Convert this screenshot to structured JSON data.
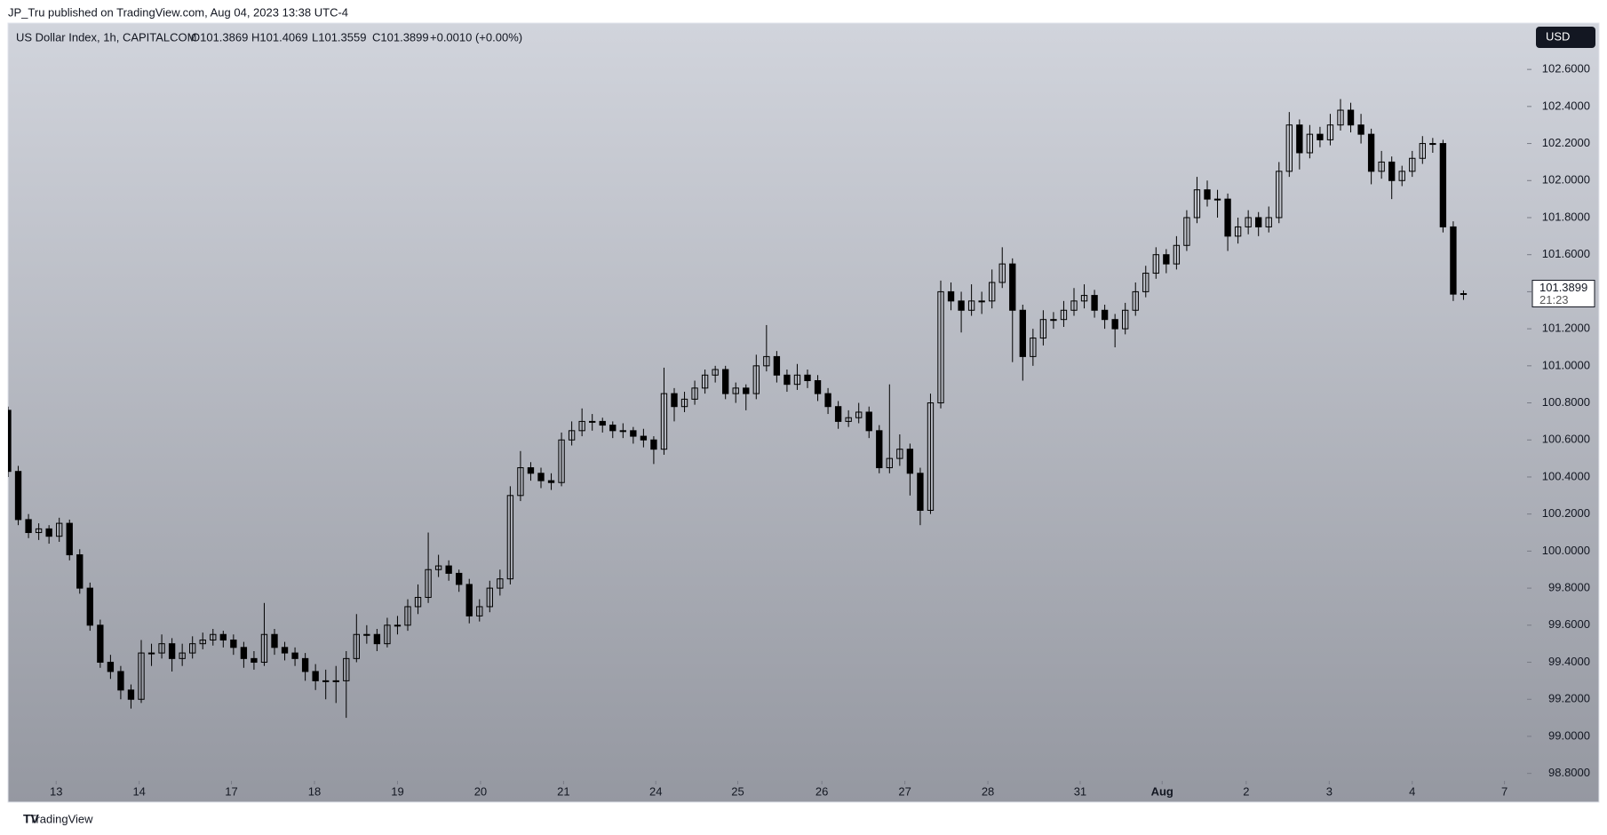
{
  "header": {
    "published": "JP_Tru published on TradingView.com, Aug 04, 2023 13:38 UTC-4",
    "brand": "TradingView",
    "currency": "USD"
  },
  "chart_data": {
    "type": "candlestick",
    "title": "US Dollar Index, 1h, CAPITALCOM",
    "legend_values": [
      "O101.3869",
      "H101.4069",
      "L101.3559",
      "C101.3899",
      "+0.0010 (+0.00%)"
    ],
    "up_color": "#000000",
    "down_color": "#000000",
    "ohlc": [
      [
        100.76,
        100.78,
        100.4,
        100.43
      ],
      [
        100.43,
        100.46,
        100.14,
        100.17
      ],
      [
        100.17,
        100.2,
        100.07,
        100.1
      ],
      [
        100.1,
        100.15,
        100.06,
        100.12
      ],
      [
        100.12,
        100.14,
        100.04,
        100.08
      ],
      [
        100.08,
        100.18,
        100.05,
        100.15
      ],
      [
        100.15,
        100.17,
        99.95,
        99.98
      ],
      [
        99.98,
        100.01,
        99.77,
        99.8
      ],
      [
        99.8,
        99.83,
        99.57,
        99.6
      ],
      [
        99.6,
        99.63,
        99.37,
        99.4
      ],
      [
        99.4,
        99.44,
        99.31,
        99.35
      ],
      [
        99.35,
        99.38,
        99.2,
        99.25
      ],
      [
        99.25,
        99.28,
        99.15,
        99.2
      ],
      [
        99.2,
        99.52,
        99.18,
        99.45
      ],
      [
        99.45,
        99.5,
        99.38,
        99.45
      ],
      [
        99.45,
        99.55,
        99.42,
        99.5
      ],
      [
        99.5,
        99.53,
        99.35,
        99.42
      ],
      [
        99.42,
        99.5,
        99.38,
        99.45
      ],
      [
        99.45,
        99.54,
        99.42,
        99.5
      ],
      [
        99.5,
        99.56,
        99.47,
        99.52
      ],
      [
        99.52,
        99.58,
        99.49,
        99.55
      ],
      [
        99.55,
        99.57,
        99.48,
        99.52
      ],
      [
        99.52,
        99.55,
        99.44,
        99.48
      ],
      [
        99.48,
        99.51,
        99.37,
        99.42
      ],
      [
        99.42,
        99.46,
        99.36,
        99.4
      ],
      [
        99.4,
        99.72,
        99.38,
        99.55
      ],
      [
        99.55,
        99.58,
        99.44,
        99.48
      ],
      [
        99.48,
        99.51,
        99.41,
        99.45
      ],
      [
        99.45,
        99.48,
        99.38,
        99.42
      ],
      [
        99.42,
        99.45,
        99.3,
        99.35
      ],
      [
        99.35,
        99.39,
        99.25,
        99.3
      ],
      [
        99.3,
        99.36,
        99.2,
        99.3
      ],
      [
        99.3,
        99.38,
        99.18,
        99.3
      ],
      [
        99.3,
        99.46,
        99.1,
        99.42
      ],
      [
        99.42,
        99.66,
        99.4,
        99.55
      ],
      [
        99.55,
        99.6,
        99.5,
        99.55
      ],
      [
        99.55,
        99.58,
        99.46,
        99.5
      ],
      [
        99.5,
        99.64,
        99.48,
        99.6
      ],
      [
        99.6,
        99.65,
        99.55,
        99.6
      ],
      [
        99.6,
        99.74,
        99.57,
        99.7
      ],
      [
        99.7,
        99.82,
        99.66,
        99.75
      ],
      [
        99.75,
        100.1,
        99.72,
        99.9
      ],
      [
        99.9,
        99.98,
        99.86,
        99.92
      ],
      [
        99.92,
        99.95,
        99.84,
        99.88
      ],
      [
        99.88,
        99.9,
        99.78,
        99.82
      ],
      [
        99.82,
        99.85,
        99.61,
        99.65
      ],
      [
        99.65,
        99.74,
        99.62,
        99.7
      ],
      [
        99.7,
        99.84,
        99.67,
        99.8
      ],
      [
        99.8,
        99.9,
        99.76,
        99.85
      ],
      [
        99.85,
        100.35,
        99.82,
        100.3
      ],
      [
        100.3,
        100.54,
        100.27,
        100.45
      ],
      [
        100.45,
        100.48,
        100.38,
        100.42
      ],
      [
        100.42,
        100.45,
        100.34,
        100.38
      ],
      [
        100.38,
        100.42,
        100.33,
        100.37
      ],
      [
        100.37,
        100.64,
        100.35,
        100.6
      ],
      [
        100.6,
        100.7,
        100.57,
        100.65
      ],
      [
        100.65,
        100.77,
        100.62,
        100.7
      ],
      [
        100.7,
        100.74,
        100.65,
        100.7
      ],
      [
        100.7,
        100.72,
        100.64,
        100.68
      ],
      [
        100.68,
        100.7,
        100.61,
        100.65
      ],
      [
        100.65,
        100.69,
        100.61,
        100.65
      ],
      [
        100.65,
        100.67,
        100.58,
        100.62
      ],
      [
        100.62,
        100.66,
        100.56,
        100.6
      ],
      [
        100.6,
        100.62,
        100.47,
        100.55
      ],
      [
        100.55,
        100.99,
        100.52,
        100.85
      ],
      [
        100.85,
        100.88,
        100.7,
        100.78
      ],
      [
        100.78,
        100.86,
        100.75,
        100.82
      ],
      [
        100.82,
        100.92,
        100.79,
        100.88
      ],
      [
        100.88,
        100.98,
        100.85,
        100.95
      ],
      [
        100.95,
        101.0,
        100.91,
        100.98
      ],
      [
        100.98,
        101.0,
        100.82,
        100.85
      ],
      [
        100.85,
        100.91,
        100.8,
        100.88
      ],
      [
        100.88,
        100.9,
        100.76,
        100.85
      ],
      [
        100.85,
        101.06,
        100.82,
        101.0
      ],
      [
        101.0,
        101.22,
        100.97,
        101.05
      ],
      [
        101.05,
        101.08,
        100.91,
        100.95
      ],
      [
        100.95,
        100.98,
        100.86,
        100.9
      ],
      [
        100.9,
        101.01,
        100.87,
        100.95
      ],
      [
        100.95,
        100.98,
        100.88,
        100.92
      ],
      [
        100.92,
        100.95,
        100.81,
        100.85
      ],
      [
        100.85,
        100.88,
        100.74,
        100.78
      ],
      [
        100.78,
        100.81,
        100.66,
        100.7
      ],
      [
        100.7,
        100.76,
        100.67,
        100.72
      ],
      [
        100.72,
        100.8,
        100.69,
        100.75
      ],
      [
        100.75,
        100.78,
        100.61,
        100.65
      ],
      [
        100.65,
        100.68,
        100.42,
        100.45
      ],
      [
        100.45,
        100.9,
        100.42,
        100.5
      ],
      [
        100.5,
        100.63,
        100.46,
        100.55
      ],
      [
        100.55,
        100.58,
        100.3,
        100.42
      ],
      [
        100.42,
        100.45,
        100.14,
        100.22
      ],
      [
        100.22,
        100.85,
        100.2,
        100.8
      ],
      [
        100.8,
        101.46,
        100.77,
        101.4
      ],
      [
        101.4,
        101.45,
        101.3,
        101.35
      ],
      [
        101.35,
        101.4,
        101.18,
        101.3
      ],
      [
        101.3,
        101.44,
        101.27,
        101.35
      ],
      [
        101.35,
        101.4,
        101.28,
        101.35
      ],
      [
        101.35,
        101.52,
        101.31,
        101.45
      ],
      [
        101.45,
        101.64,
        101.42,
        101.55
      ],
      [
        101.55,
        101.58,
        101.02,
        101.3
      ],
      [
        101.3,
        101.33,
        100.92,
        101.05
      ],
      [
        101.05,
        101.2,
        101.0,
        101.15
      ],
      [
        101.15,
        101.3,
        101.11,
        101.25
      ],
      [
        101.25,
        101.29,
        101.2,
        101.25
      ],
      [
        101.25,
        101.35,
        101.21,
        101.3
      ],
      [
        101.3,
        101.42,
        101.27,
        101.35
      ],
      [
        101.35,
        101.44,
        101.31,
        101.38
      ],
      [
        101.38,
        101.41,
        101.26,
        101.3
      ],
      [
        101.3,
        101.33,
        101.2,
        101.25
      ],
      [
        101.25,
        101.28,
        101.1,
        101.2
      ],
      [
        101.2,
        101.34,
        101.17,
        101.3
      ],
      [
        101.3,
        101.45,
        101.27,
        101.4
      ],
      [
        101.4,
        101.54,
        101.37,
        101.5
      ],
      [
        101.5,
        101.64,
        101.47,
        101.6
      ],
      [
        101.6,
        101.63,
        101.5,
        101.55
      ],
      [
        101.55,
        101.7,
        101.52,
        101.65
      ],
      [
        101.65,
        101.84,
        101.62,
        101.8
      ],
      [
        101.8,
        102.02,
        101.77,
        101.95
      ],
      [
        101.95,
        102.0,
        101.86,
        101.9
      ],
      [
        101.9,
        101.95,
        101.8,
        101.9
      ],
      [
        101.9,
        101.93,
        101.62,
        101.7
      ],
      [
        101.7,
        101.8,
        101.66,
        101.75
      ],
      [
        101.75,
        101.84,
        101.71,
        101.8
      ],
      [
        101.8,
        101.83,
        101.7,
        101.75
      ],
      [
        101.75,
        101.86,
        101.72,
        101.8
      ],
      [
        101.8,
        102.1,
        101.77,
        102.05
      ],
      [
        102.05,
        102.37,
        102.02,
        102.3
      ],
      [
        102.3,
        102.33,
        102.06,
        102.15
      ],
      [
        102.15,
        102.3,
        102.12,
        102.25
      ],
      [
        102.25,
        102.29,
        102.18,
        102.22
      ],
      [
        102.22,
        102.36,
        102.19,
        102.3
      ],
      [
        102.3,
        102.44,
        102.27,
        102.38
      ],
      [
        102.38,
        102.42,
        102.26,
        102.3
      ],
      [
        102.3,
        102.36,
        102.2,
        102.25
      ],
      [
        102.25,
        102.28,
        101.98,
        102.05
      ],
      [
        102.05,
        102.16,
        102.01,
        102.1
      ],
      [
        102.1,
        102.13,
        101.9,
        102.0
      ],
      [
        102.0,
        102.08,
        101.97,
        102.05
      ],
      [
        102.05,
        102.16,
        102.02,
        102.12
      ],
      [
        102.12,
        102.24,
        102.09,
        102.2
      ],
      [
        102.2,
        102.23,
        102.15,
        102.2
      ],
      [
        102.2,
        102.22,
        101.72,
        101.75
      ],
      [
        101.75,
        101.78,
        101.35,
        101.3869
      ],
      [
        101.3869,
        101.4069,
        101.3559,
        101.3899
      ]
    ],
    "xlim": [
      0,
      148.2
    ],
    "xticks": [
      {
        "value": 4.7,
        "label": "13"
      },
      {
        "value": 12.8,
        "label": "14"
      },
      {
        "value": 21.8,
        "label": "17"
      },
      {
        "value": 29.9,
        "label": "18"
      },
      {
        "value": 38,
        "label": "19"
      },
      {
        "value": 46.1,
        "label": "20"
      },
      {
        "value": 54.2,
        "label": "21"
      },
      {
        "value": 63.2,
        "label": "24"
      },
      {
        "value": 71.2,
        "label": "25"
      },
      {
        "value": 79.4,
        "label": "26"
      },
      {
        "value": 87.5,
        "label": "27"
      },
      {
        "value": 95.6,
        "label": "28"
      },
      {
        "value": 104.6,
        "label": "31"
      },
      {
        "value": 112.6,
        "label": "Aug"
      },
      {
        "value": 120.8,
        "label": "2"
      },
      {
        "value": 128.9,
        "label": "3"
      },
      {
        "value": 137,
        "label": "4"
      },
      {
        "value": 146,
        "label": "7"
      }
    ],
    "ylim": [
      98.76,
      102.85
    ],
    "yticks": [
      {
        "value": 98.8,
        "label": "98.8000"
      },
      {
        "value": 99,
        "label": "99.0000"
      },
      {
        "value": 99.2,
        "label": "99.2000"
      },
      {
        "value": 99.4,
        "label": "99.4000"
      },
      {
        "value": 99.6,
        "label": "99.6000"
      },
      {
        "value": 99.8,
        "label": "99.8000"
      },
      {
        "value": 100,
        "label": "100.0000"
      },
      {
        "value": 100.2,
        "label": "100.2000"
      },
      {
        "value": 100.4,
        "label": "100.4000"
      },
      {
        "value": 100.6,
        "label": "100.6000"
      },
      {
        "value": 100.8,
        "label": "100.8000"
      },
      {
        "value": 101,
        "label": "101.0000"
      },
      {
        "value": 101.2,
        "label": "101.2000"
      },
      {
        "value": 101.4,
        "label": "101.4000"
      },
      {
        "value": 101.6,
        "label": "101.6000"
      },
      {
        "value": 101.8,
        "label": "101.8000"
      },
      {
        "value": 102,
        "label": "102.0000"
      },
      {
        "value": 102.2,
        "label": "102.2000"
      },
      {
        "value": 102.4,
        "label": "102.4000"
      },
      {
        "value": 102.6,
        "label": "102.6000"
      }
    ],
    "price_tag": {
      "value": 101.3899,
      "label": "101.3899",
      "countdown": "21:23"
    }
  }
}
